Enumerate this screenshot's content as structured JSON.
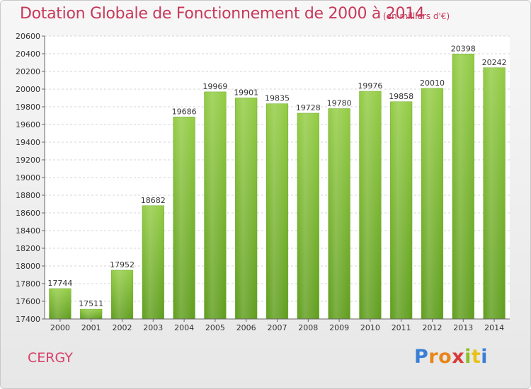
{
  "header": {
    "title": "Dotation Globale de Fonctionnement de 2000 à 2014",
    "subtitle": "(en milliers d'€)"
  },
  "footer": {
    "city": "CERGY",
    "logo": {
      "letters": [
        "P",
        "r",
        "o",
        "x",
        "i",
        "t",
        "i"
      ],
      "colors": [
        "#3a7fd6",
        "#e8861a",
        "#e8861a",
        "#d83a3a",
        "#8bbf26",
        "#e8c21a",
        "#3a7fd6"
      ]
    }
  },
  "chart_data": {
    "type": "bar",
    "categories": [
      "2000",
      "2001",
      "2002",
      "2003",
      "2004",
      "2005",
      "2006",
      "2007",
      "2008",
      "2009",
      "2010",
      "2011",
      "2012",
      "2013",
      "2014"
    ],
    "values": [
      17744,
      17511,
      17952,
      18682,
      19686,
      19969,
      19901,
      19835,
      19728,
      19780,
      19976,
      19858,
      20010,
      20398,
      20242
    ],
    "title": "Dotation Globale de Fonctionnement de 2000 à 2014",
    "ylim": [
      17400,
      20600
    ],
    "yticks": [
      17400,
      17600,
      17800,
      18000,
      18200,
      18400,
      18600,
      18800,
      19000,
      19200,
      19400,
      19600,
      19800,
      20000,
      20200,
      20400,
      20600
    ],
    "grid": true,
    "bar_color": "#8cc63f",
    "bar_color_dark": "#5e9a1e"
  }
}
